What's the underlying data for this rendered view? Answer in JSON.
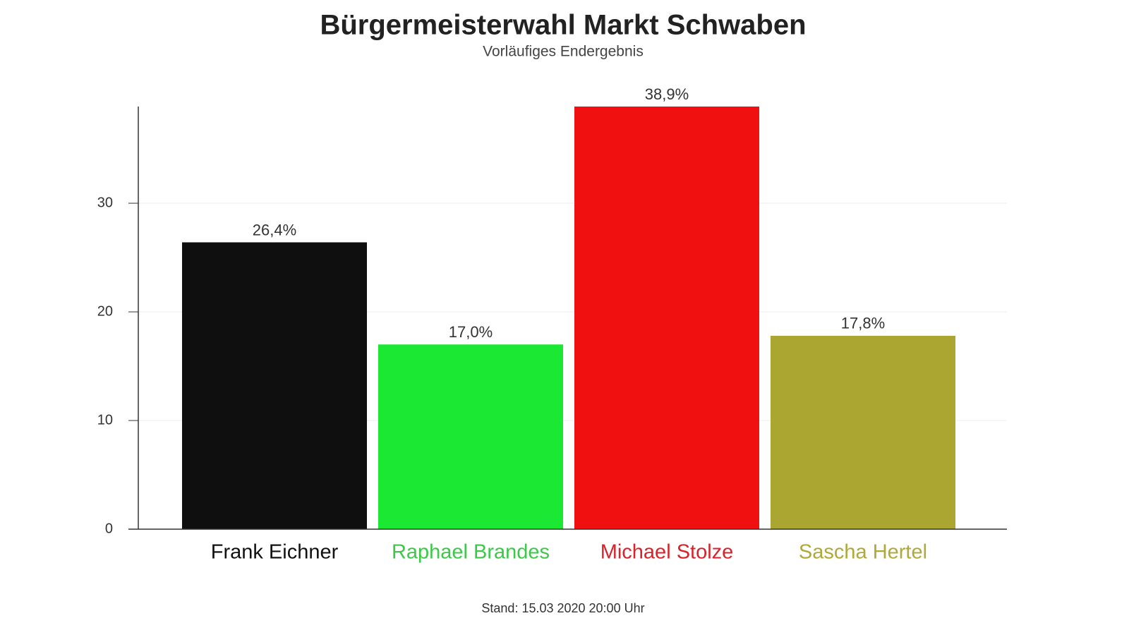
{
  "chart_data": {
    "type": "bar",
    "title": "Bürgermeisterwahl Markt Schwaben",
    "subtitle": "Vorläufiges Endergebnis",
    "categories": [
      "Frank Eichner",
      "Raphael Brandes",
      "Michael Stolze",
      "Sascha Hertel"
    ],
    "values": [
      26.4,
      17.0,
      38.9,
      17.8
    ],
    "value_labels": [
      "26,4%",
      "17,0%",
      "38,9%",
      "17,8%"
    ],
    "colors": [
      "#0f0f0f",
      "#1ae832",
      "#f01010",
      "#aba532"
    ],
    "label_colors": [
      "#111111",
      "#3ec84a",
      "#d8232b",
      "#b0a83a"
    ],
    "ylim": [
      0,
      38.9
    ],
    "yticks": [
      0,
      10,
      20,
      30
    ],
    "grid": true,
    "footnote": "Stand: 15.03 2020 20:00 Uhr"
  }
}
